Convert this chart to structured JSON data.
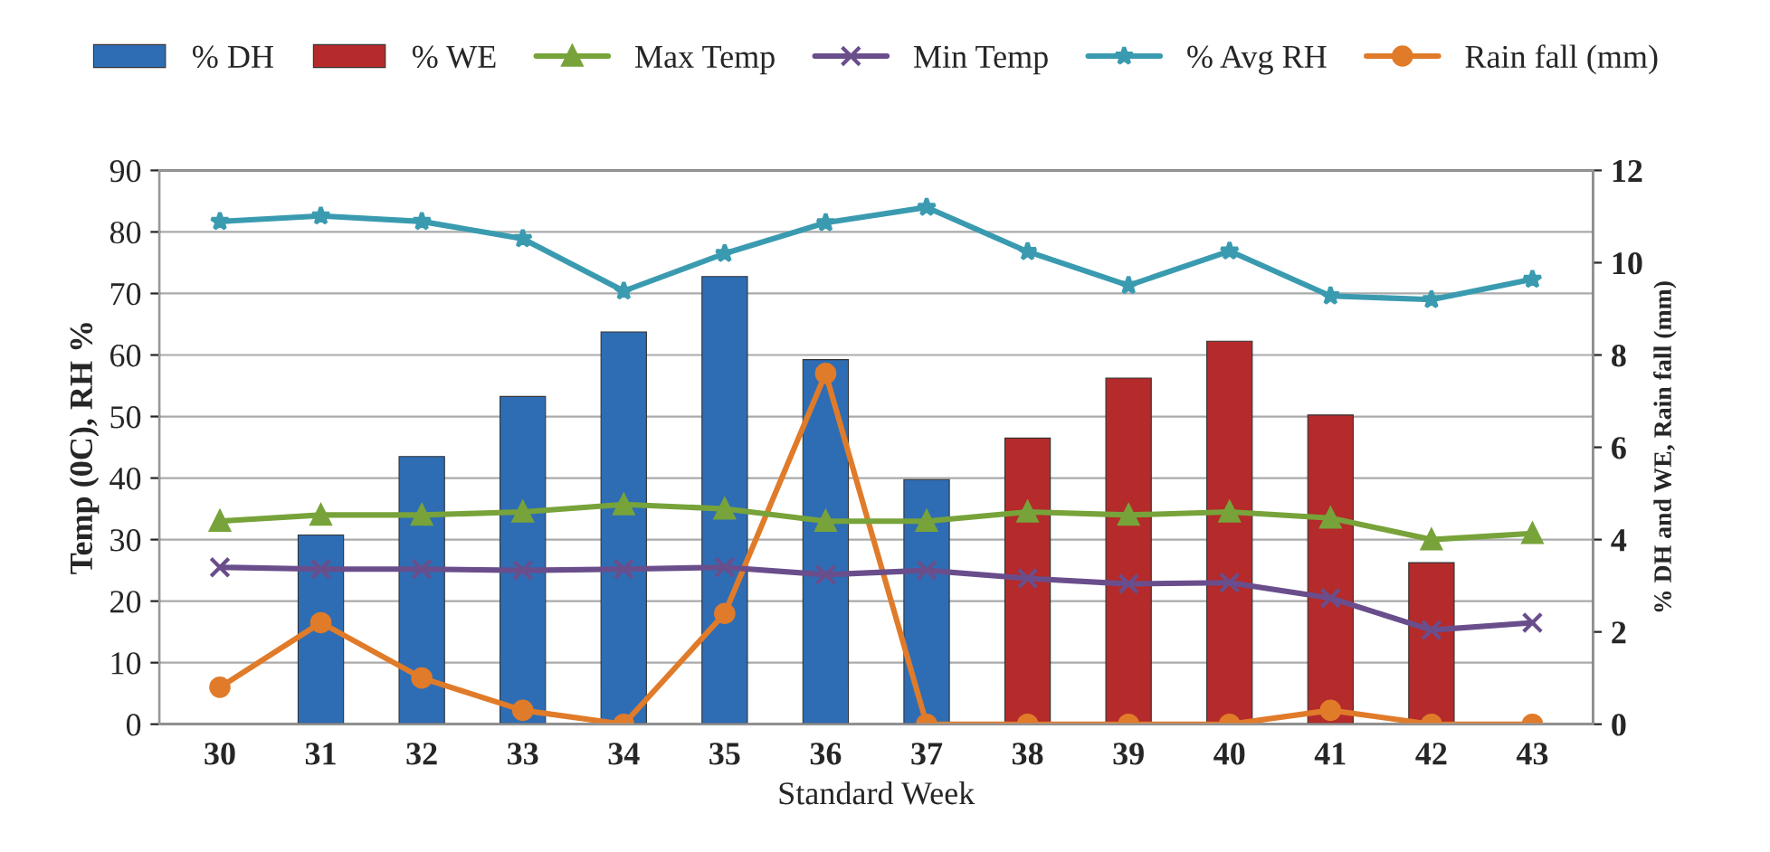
{
  "chart_data": {
    "type": "bar",
    "xlabel": "Standard Week",
    "ylabel": "Temp (0C), RH %",
    "y2label": "% DH and WE, Rain fall (mm)",
    "categories": [
      "30",
      "31",
      "32",
      "33",
      "34",
      "35",
      "36",
      "37",
      "38",
      "39",
      "40",
      "41",
      "42",
      "43"
    ],
    "series": [
      {
        "name": "% DH",
        "axis": "y2",
        "color": "#2e6db4",
        "values": [
          null,
          4.1,
          5.8,
          7.1,
          8.5,
          9.7,
          7.9,
          5.3,
          null,
          null,
          null,
          null,
          null,
          null
        ]
      },
      {
        "name": "% WE",
        "axis": "y2",
        "color": "#b52a2a",
        "values": [
          null,
          null,
          null,
          null,
          null,
          null,
          null,
          null,
          6.2,
          7.5,
          8.3,
          6.7,
          3.5,
          null
        ]
      },
      {
        "name": "Max Temp",
        "type": "line",
        "axis": "y",
        "marker": "triangle",
        "color": "#77a33a",
        "values": [
          33,
          34,
          34,
          34.5,
          35.7,
          35,
          33,
          33,
          34.5,
          34,
          34.5,
          33.5,
          30,
          31
        ]
      },
      {
        "name": "Min Temp",
        "type": "line",
        "axis": "y",
        "marker": "cross",
        "color": "#6a4e8c",
        "values": [
          25.5,
          25.2,
          25.2,
          25,
          25.2,
          25.5,
          24.3,
          25,
          23.7,
          22.8,
          23,
          20.5,
          15.3,
          16.5
        ]
      },
      {
        "name": "% Avg RH",
        "type": "line",
        "axis": "y",
        "marker": "star",
        "color": "#3a9bb0",
        "values": [
          81.7,
          82.6,
          81.7,
          78.9,
          70.4,
          76.5,
          81.5,
          84,
          76.8,
          71.3,
          76.9,
          69.6,
          69,
          72.3
        ]
      },
      {
        "name": "Rain fall (mm)",
        "type": "line",
        "axis": "y2",
        "marker": "circle",
        "color": "#e07b2a",
        "values": [
          0.8,
          2.2,
          1.0,
          0.3,
          0,
          2.4,
          7.6,
          0,
          0,
          0,
          0,
          0.3,
          0,
          0
        ]
      }
    ],
    "ylim": [
      0,
      90
    ],
    "yticks": [
      0,
      10,
      20,
      30,
      40,
      50,
      60,
      70,
      80,
      90
    ],
    "y2lim": [
      0,
      12
    ],
    "y2ticks": [
      0,
      2,
      4,
      6,
      8,
      10,
      12
    ],
    "grid": "y",
    "legend": "top"
  }
}
